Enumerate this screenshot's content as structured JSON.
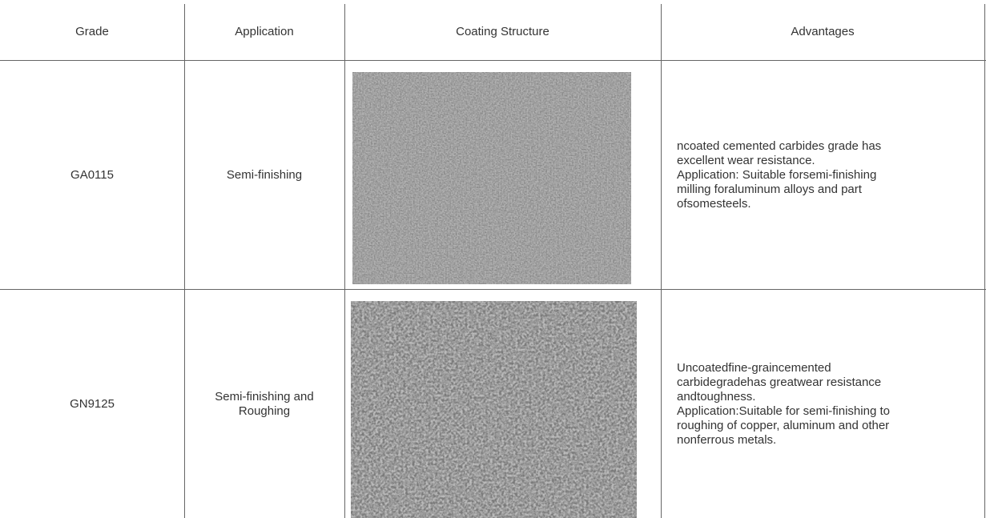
{
  "table": {
    "header": [
      "Grade",
      "Application",
      "Coating Structure",
      "Advantages"
    ],
    "rows": [
      {
        "grade": "GA0115",
        "application": [
          "Semi-finishing"
        ],
        "advantages": [
          "ncoated cemented carbides grade has",
          "excellent wear resistance.",
          "Application: Suitable forsemi-finishing",
          "milling foraluminum alloys and part",
          "ofsomesteels."
        ]
      },
      {
        "grade": "GN9125",
        "application": [
          "Semi-finishing and",
          "Roughing"
        ],
        "advantages": [
          "Uncoatedfine-graincemented",
          "carbidegradehas greatwear resistance",
          "andtoughness.",
          "Application:Suitable for semi-finishing to",
          "roughing of copper, aluminum and other",
          "nonferrous metals."
        ]
      }
    ]
  }
}
